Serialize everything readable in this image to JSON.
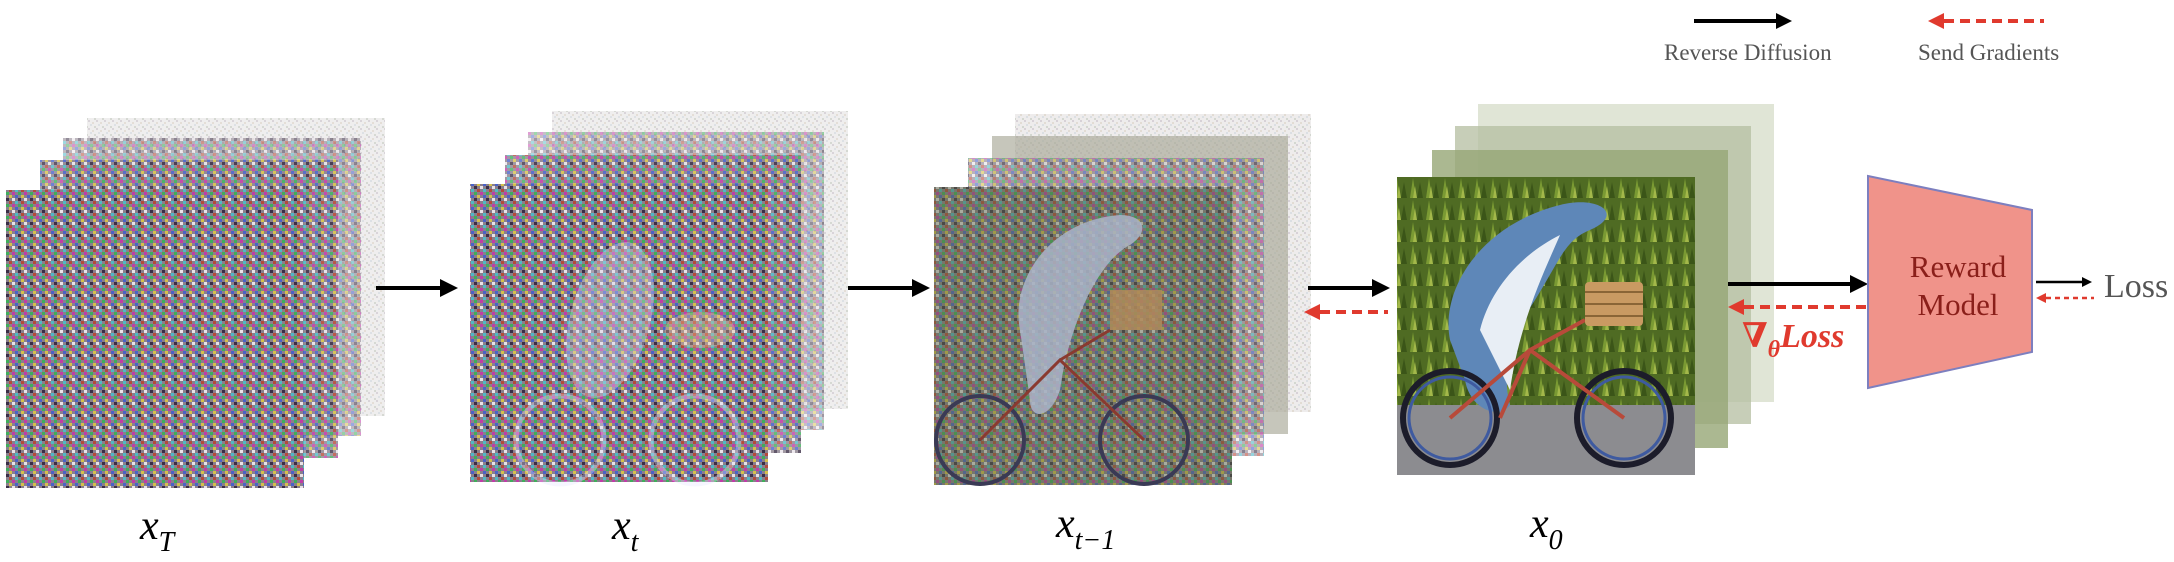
{
  "legend": {
    "reverse_diffusion": "Reverse Diffusion",
    "send_gradients": "Send Gradients"
  },
  "labels": {
    "x_T": {
      "base": "x",
      "sub": "T"
    },
    "x_t": {
      "base": "x",
      "sub": "t"
    },
    "x_t_minus_1": {
      "base": "x",
      "sub": "t−1"
    },
    "x_0": {
      "base": "x",
      "sub": "0"
    }
  },
  "gradient_label": {
    "prefix": "∇",
    "sub": "θ",
    "text": "Loss"
  },
  "reward_model": {
    "line1": "Reward",
    "line2": "Model"
  },
  "loss_label": "Loss",
  "colors": {
    "forward_arrow": "#000000",
    "gradient_arrow": "#e03a2e",
    "reward_fill": "#f0938a",
    "reward_stroke": "#7d7fbf",
    "label_grey": "#555555"
  },
  "image_stacks": [
    {
      "name": "stack-x-T",
      "noise_level": 1.0,
      "layers": 4
    },
    {
      "name": "stack-x-t",
      "noise_level": 0.75,
      "layers": 4
    },
    {
      "name": "stack-x-t-minus-1",
      "noise_level": 0.45,
      "layers": 4
    },
    {
      "name": "stack-x-0",
      "noise_level": 0.0,
      "layers": 4
    }
  ]
}
